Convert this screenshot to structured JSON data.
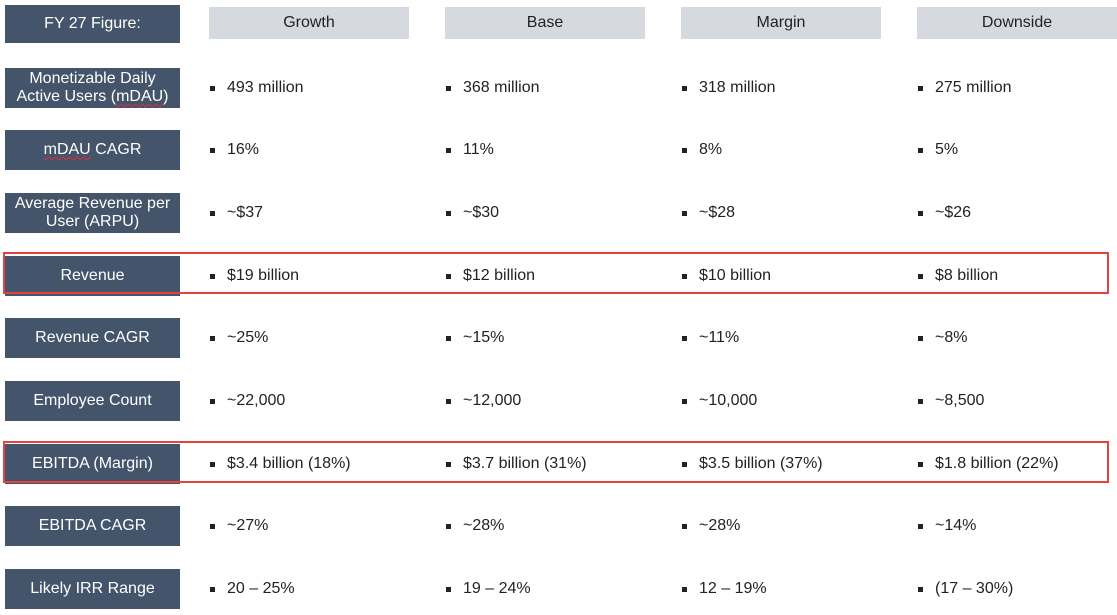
{
  "header": {
    "corner_label": "FY 27 Figure:",
    "columns": [
      "Growth",
      "Base",
      "Margin",
      "Downside"
    ]
  },
  "rows": [
    {
      "label_line1": "Monetizable Daily",
      "label_line2_pre": "Active Users (",
      "label_line2_mark": "mDAU",
      "label_line2_post": ")",
      "values": [
        "493 million",
        "368 million",
        "318 million",
        "275 million"
      ]
    },
    {
      "label_mark": "mDAU",
      "label_post": " CAGR",
      "values": [
        "16%",
        "11%",
        "8%",
        "5%"
      ]
    },
    {
      "label_line1": "Average Revenue per",
      "label_line2": "User (ARPU)",
      "values": [
        "~$37",
        "~$30",
        "~$28",
        "~$26"
      ]
    },
    {
      "label": "Revenue",
      "highlighted": true,
      "values": [
        "$19 billion",
        "$12 billion",
        "$10 billion",
        "$8 billion"
      ]
    },
    {
      "label": "Revenue CAGR",
      "values": [
        "~25%",
        "~15%",
        "~11%",
        "~8%"
      ]
    },
    {
      "label": "Employee Count",
      "values": [
        "~22,000",
        "~12,000",
        "~10,000",
        "~8,500"
      ]
    },
    {
      "label": "EBITDA (Margin)",
      "highlighted": true,
      "values": [
        "$3.4 billion (18%)",
        "$3.7 billion (31%)",
        "$3.5 billion (37%)",
        "$1.8 billion (22%)"
      ]
    },
    {
      "label": "EBITDA CAGR",
      "values": [
        "~27%",
        "~28%",
        "~28%",
        "~14%"
      ]
    },
    {
      "label": "Likely IRR Range",
      "values": [
        "20 – 25%",
        "19 – 24%",
        "12 – 19%",
        "(17 – 30%)"
      ]
    }
  ],
  "colors": {
    "label_background": "#44546a",
    "header_background": "#d6dae0",
    "highlight_border": "#e8413b"
  }
}
